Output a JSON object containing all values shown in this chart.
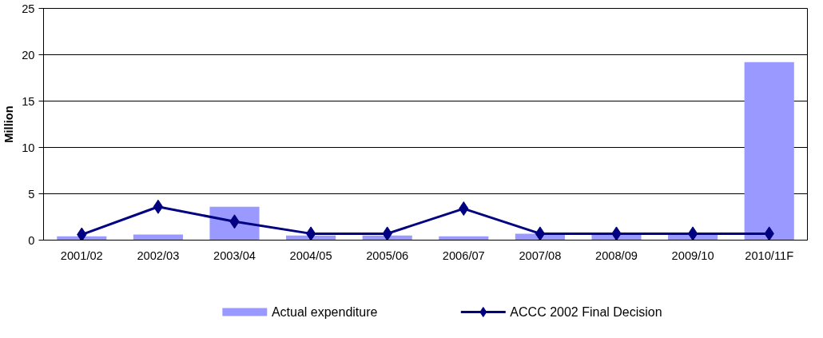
{
  "chart_data": {
    "type": "bar",
    "ylabel": "Million",
    "categories": [
      "2001/02",
      "2002/03",
      "2003/04",
      "2004/05",
      "2005/06",
      "2006/07",
      "2007/08",
      "2008/09",
      "2009/10",
      "2010/11F"
    ],
    "series": [
      {
        "name": "Actual expenditure",
        "color": "#9999ff",
        "values": [
          0.4,
          0.6,
          3.6,
          0.5,
          0.5,
          0.4,
          0.7,
          0.6,
          0.6,
          19.2
        ]
      },
      {
        "name": "ACCC 2002 Final Decision",
        "type": "line",
        "color": "#000080",
        "marker": "diamond",
        "values": [
          0.6,
          3.6,
          2.0,
          0.7,
          0.7,
          3.4,
          0.7,
          0.7,
          0.7,
          0.7
        ]
      }
    ],
    "ylim": [
      0,
      25
    ],
    "yticks": [
      0,
      5,
      10,
      15,
      20,
      25
    ],
    "grid": "y",
    "legend": "bottom"
  }
}
